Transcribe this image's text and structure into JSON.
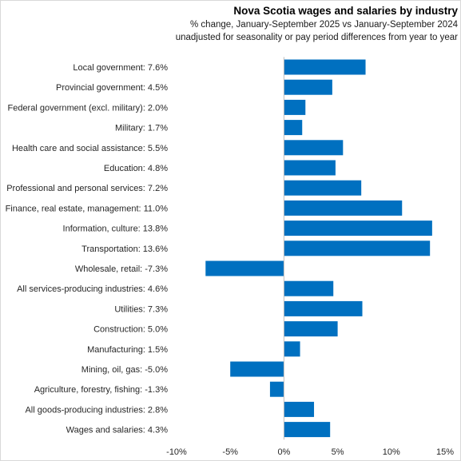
{
  "chart_data": {
    "type": "bar",
    "orientation": "horizontal",
    "title": "Nova Scotia wages and salaries by industry",
    "subtitle_lines": [
      "% change, January-September  2025 vs January-September  2024",
      "unadjusted for seasonality or pay period differences from year to year"
    ],
    "categories": [
      "Local government: 7.6%",
      "Provincial government: 4.5%",
      "Federal government (excl. military): 2.0%",
      "Military: 1.7%",
      "Health care and social assistance: 5.5%",
      "Education: 4.8%",
      "Professional and personal services: 7.2%",
      "Finance, real estate, management: 11.0%",
      "Information, culture: 13.8%",
      "Transportation: 13.6%",
      "Wholesale, retail: -7.3%",
      "All services-producing industries: 4.6%",
      "Utilities: 7.3%",
      "Construction: 5.0%",
      "Manufacturing: 1.5%",
      "Mining, oil, gas: -5.0%",
      "Agriculture, forestry, fishing: -1.3%",
      "All goods-producing industries: 2.8%",
      "Wages and salaries: 4.3%"
    ],
    "values": [
      7.6,
      4.5,
      2.0,
      1.7,
      5.5,
      4.8,
      7.2,
      11.0,
      13.8,
      13.6,
      -7.3,
      4.6,
      7.3,
      5.0,
      1.5,
      -5.0,
      -1.3,
      2.8,
      4.3
    ],
    "xlim": [
      -10,
      15
    ],
    "xticks": [
      -10,
      -5,
      0,
      5,
      10,
      15
    ],
    "xtick_labels": [
      "-10%",
      "-5%",
      "0%",
      "5%",
      "10%",
      "15%"
    ],
    "xlabel": "",
    "ylabel": "",
    "bar_color": "#0070C0",
    "grid": false,
    "legend": "none"
  }
}
